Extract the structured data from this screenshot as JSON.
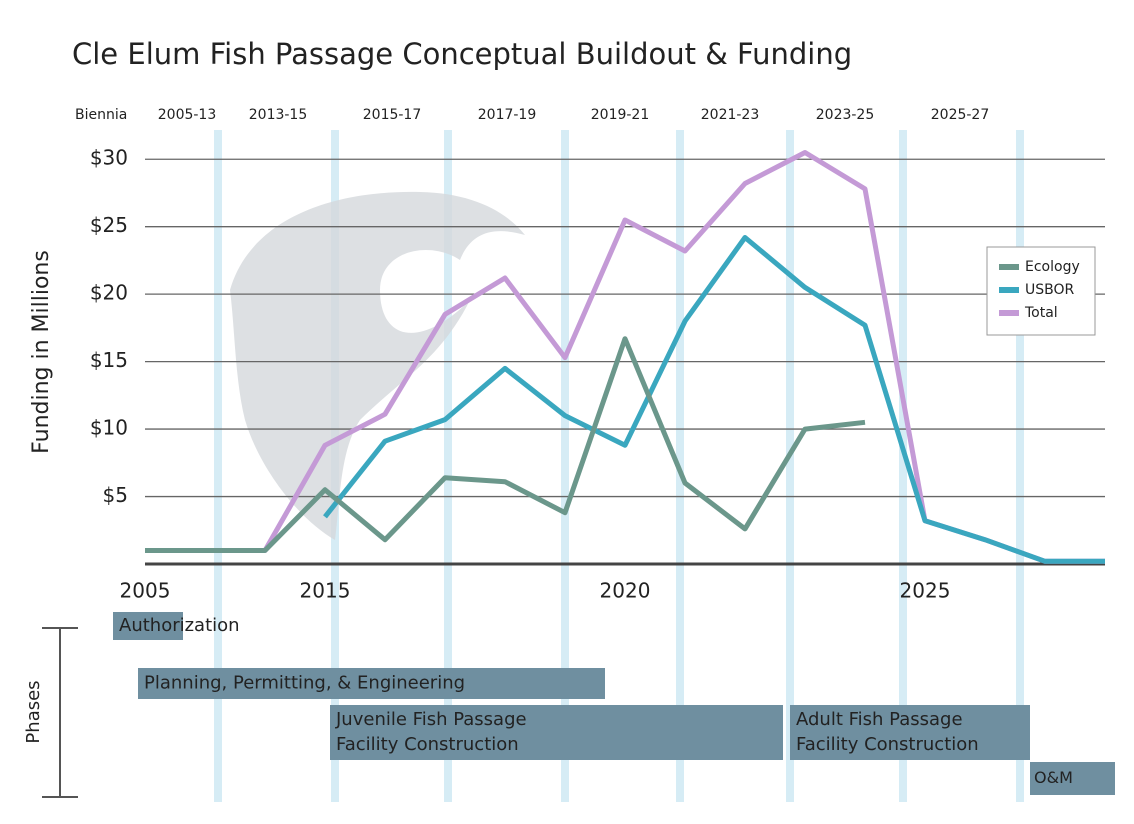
{
  "chart_data": {
    "type": "line",
    "title": "Cle Elum Fish Passage Conceptual Buildout & Funding",
    "y_label": "Funding in Millions",
    "biennia_label": "Biennia",
    "biennia": [
      "2005-13",
      "2013-15",
      "2015-17",
      "2017-19",
      "2019-21",
      "2021-23",
      "2023-25",
      "2025-27"
    ],
    "categories": [
      "2005",
      null,
      null,
      "2015",
      null,
      null,
      null,
      null,
      "2020",
      null,
      null,
      null,
      null,
      "2025",
      null,
      null,
      null
    ],
    "series": [
      {
        "name": "Total",
        "color": "#c49ad6",
        "values": [
          1,
          1,
          1,
          8.8,
          11.1,
          18.5,
          21.2,
          15.3,
          25.5,
          23.2,
          28.2,
          30.5,
          27.8,
          3.2,
          1.8,
          0.2,
          0.2
        ]
      },
      {
        "name": "USBOR",
        "color": "#3aa7bf",
        "values": [
          null,
          null,
          null,
          3.5,
          9.1,
          10.7,
          14.5,
          11,
          8.8,
          18,
          24.2,
          20.5,
          17.7,
          3.2,
          1.8,
          0.2,
          0.2
        ]
      },
      {
        "name": "Ecology",
        "color": "#6b978b",
        "values": [
          1,
          1,
          1,
          5.5,
          1.8,
          6.4,
          6.1,
          3.8,
          16.7,
          6,
          2.6,
          10,
          10.5,
          null,
          null,
          null,
          null
        ]
      }
    ],
    "ylim": [
      0,
      31.5
    ],
    "yticks": [
      {
        "value": 5,
        "label": "$5"
      },
      {
        "value": 10,
        "label": "$10"
      },
      {
        "value": 15,
        "label": "$15"
      },
      {
        "value": 20,
        "label": "$20"
      },
      {
        "value": 25,
        "label": "$25"
      },
      {
        "value": 30,
        "label": "$30"
      }
    ],
    "grid": true,
    "legend": "right",
    "phases_label": "Phases",
    "phases": [
      [
        "Authorization"
      ],
      [
        "Planning, Permitting, & Engineering"
      ],
      [
        "Juvenile Fish Passage",
        "Facility Construction"
      ],
      [
        "Adult Fish Passage",
        "Facility Construction"
      ],
      [
        "O&M"
      ]
    ]
  }
}
